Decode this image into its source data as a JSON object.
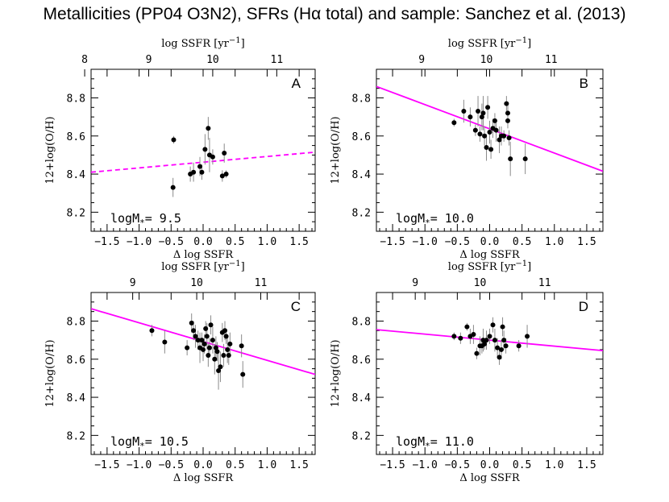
{
  "title": "Metallicities (PP04 O3N2), SFRs (Hα total) and sample: Sanchez et al. (2013)",
  "chart_data": [
    {
      "type": "scatter",
      "panel_letter": "A",
      "mass_label_prefix": "logM",
      "mass_label_sub": "*",
      "mass_value": "=  9.5",
      "xlabel": "Δ log SSFR",
      "ylabel": "12+log(O/H)",
      "top_xlabel": "log SSFR [yr",
      "top_xlabel_exp": "−1",
      "top_xlabel_end": "]",
      "xlim": [
        -1.75,
        1.75
      ],
      "ylim": [
        8.1,
        8.95
      ],
      "x_ticks": [
        -1.5,
        -1.0,
        -0.5,
        0.0,
        0.5,
        1.0,
        1.5
      ],
      "x_tick_labels": [
        "−1.5",
        "−1.0",
        "−0.5",
        "0.0",
        "0.5",
        "1.0",
        "1.5"
      ],
      "y_ticks": [
        8.2,
        8.4,
        8.6,
        8.8
      ],
      "y_tick_labels": [
        "8.2",
        "8.4",
        "8.6",
        "8.8"
      ],
      "top_ticks": [
        8,
        9,
        10,
        11
      ],
      "top_tick_labels": [
        "8",
        "9",
        "10",
        "11"
      ],
      "top_axis_offset": 9.85,
      "fit": {
        "x": [
          -1.75,
          1.75
        ],
        "y": [
          8.41,
          8.515
        ],
        "style": "dashed",
        "color": "#ff00ff"
      },
      "points": [
        {
          "x": -0.46,
          "y": 8.58,
          "yerr": 0.02
        },
        {
          "x": -0.47,
          "y": 8.33,
          "yerr": 0.05
        },
        {
          "x": -0.2,
          "y": 8.4,
          "yerr": 0.04
        },
        {
          "x": -0.15,
          "y": 8.41,
          "yerr": 0.05
        },
        {
          "x": -0.05,
          "y": 8.44,
          "yerr": 0.05
        },
        {
          "x": -0.02,
          "y": 8.41,
          "yerr": 0.04
        },
        {
          "x": 0.03,
          "y": 8.53,
          "yerr": 0.08
        },
        {
          "x": 0.08,
          "y": 8.64,
          "yerr": 0.06
        },
        {
          "x": 0.1,
          "y": 8.5,
          "yerr": 0.09
        },
        {
          "x": 0.15,
          "y": 8.49,
          "yerr": 0.04
        },
        {
          "x": 0.3,
          "y": 8.39,
          "yerr": 0.03
        },
        {
          "x": 0.33,
          "y": 8.51,
          "yerr": 0.05
        },
        {
          "x": 0.36,
          "y": 8.4,
          "yerr": 0.02
        }
      ]
    },
    {
      "type": "scatter",
      "panel_letter": "B",
      "mass_label_prefix": "logM",
      "mass_label_sub": "*",
      "mass_value": "=  10.0",
      "xlabel": "Δ log SSFR",
      "ylabel": "12+log(O/H)",
      "top_xlabel": "log SSFR [yr",
      "top_xlabel_exp": "−1",
      "top_xlabel_end": "]",
      "xlim": [
        -1.75,
        1.75
      ],
      "ylim": [
        8.1,
        8.95
      ],
      "x_ticks": [
        -1.5,
        -1.0,
        -0.5,
        0.0,
        0.5,
        1.0,
        1.5
      ],
      "x_tick_labels": [
        "−1.5",
        "−1.0",
        "−0.5",
        "0.0",
        "0.5",
        "1.0",
        "1.5"
      ],
      "y_ticks": [
        8.2,
        8.4,
        8.6,
        8.8
      ],
      "y_tick_labels": [
        "8.2",
        "8.4",
        "8.6",
        "8.8"
      ],
      "top_ticks": [
        9,
        10,
        11
      ],
      "top_tick_labels": [
        "9",
        "10",
        "11"
      ],
      "top_axis_offset": 10.05,
      "fit": {
        "x": [
          -1.75,
          1.75
        ],
        "y": [
          8.86,
          8.415
        ],
        "style": "solid",
        "color": "#ff00ff"
      },
      "points": [
        {
          "x": -0.55,
          "y": 8.67,
          "yerr": 0.02
        },
        {
          "x": -0.4,
          "y": 8.73,
          "yerr": 0.06
        },
        {
          "x": -0.3,
          "y": 8.7,
          "yerr": 0.05
        },
        {
          "x": -0.22,
          "y": 8.63,
          "yerr": 0.03
        },
        {
          "x": -0.18,
          "y": 8.73,
          "yerr": 0.08
        },
        {
          "x": -0.15,
          "y": 8.61,
          "yerr": 0.04
        },
        {
          "x": -0.12,
          "y": 8.7,
          "yerr": 0.07
        },
        {
          "x": -0.1,
          "y": 8.72,
          "yerr": 0.09
        },
        {
          "x": -0.08,
          "y": 8.6,
          "yerr": 0.05
        },
        {
          "x": -0.05,
          "y": 8.54,
          "yerr": 0.07
        },
        {
          "x": -0.03,
          "y": 8.75,
          "yerr": 0.06
        },
        {
          "x": 0.0,
          "y": 8.62,
          "yerr": 0.06
        },
        {
          "x": 0.02,
          "y": 8.53,
          "yerr": 0.05
        },
        {
          "x": 0.05,
          "y": 8.64,
          "yerr": 0.05
        },
        {
          "x": 0.08,
          "y": 8.68,
          "yerr": 0.04
        },
        {
          "x": 0.1,
          "y": 8.63,
          "yerr": 0.06
        },
        {
          "x": 0.15,
          "y": 8.58,
          "yerr": 0.07
        },
        {
          "x": 0.18,
          "y": 8.6,
          "yerr": 0.05
        },
        {
          "x": 0.22,
          "y": 8.6,
          "yerr": 0.03
        },
        {
          "x": 0.26,
          "y": 8.77,
          "yerr": 0.04
        },
        {
          "x": 0.28,
          "y": 8.72,
          "yerr": 0.06
        },
        {
          "x": 0.28,
          "y": 8.68,
          "yerr": 0.04
        },
        {
          "x": 0.3,
          "y": 8.59,
          "yerr": 0.04
        },
        {
          "x": 0.32,
          "y": 8.48,
          "yerr": 0.09
        },
        {
          "x": 0.55,
          "y": 8.48,
          "yerr": 0.08
        }
      ]
    },
    {
      "type": "scatter",
      "panel_letter": "C",
      "mass_label_prefix": "logM",
      "mass_label_sub": "*",
      "mass_value": "=  10.5",
      "xlabel": "Δ log SSFR",
      "ylabel": "12+log(O/H)",
      "top_xlabel": "log SSFR [yr",
      "top_xlabel_exp": "−1",
      "top_xlabel_end": "]",
      "xlim": [
        -1.75,
        1.75
      ],
      "ylim": [
        8.1,
        8.95
      ],
      "x_ticks": [
        -1.5,
        -1.0,
        -0.5,
        0.0,
        0.5,
        1.0,
        1.5
      ],
      "x_tick_labels": [
        "−1.5",
        "−1.0",
        "−0.5",
        "0.0",
        "0.5",
        "1.0",
        "1.5"
      ],
      "y_ticks": [
        8.2,
        8.4,
        8.6,
        8.8
      ],
      "y_tick_labels": [
        "8.2",
        "8.4",
        "8.6",
        "8.8"
      ],
      "top_ticks": [
        9,
        10,
        11
      ],
      "top_tick_labels": [
        "9",
        "10",
        "11"
      ],
      "top_axis_offset": 10.1,
      "fit": {
        "x": [
          -1.75,
          1.75
        ],
        "y": [
          8.865,
          8.52
        ],
        "style": "solid",
        "color": "#ff00ff"
      },
      "points": [
        {
          "x": -0.8,
          "y": 8.75,
          "yerr": 0.03
        },
        {
          "x": -0.6,
          "y": 8.69,
          "yerr": 0.06
        },
        {
          "x": -0.25,
          "y": 8.66,
          "yerr": 0.04
        },
        {
          "x": -0.18,
          "y": 8.79,
          "yerr": 0.05
        },
        {
          "x": -0.15,
          "y": 8.75,
          "yerr": 0.05
        },
        {
          "x": -0.12,
          "y": 8.72,
          "yerr": 0.06
        },
        {
          "x": -0.08,
          "y": 8.7,
          "yerr": 0.05
        },
        {
          "x": -0.05,
          "y": 8.66,
          "yerr": 0.08
        },
        {
          "x": -0.02,
          "y": 8.7,
          "yerr": 0.04
        },
        {
          "x": 0.0,
          "y": 8.65,
          "yerr": 0.06
        },
        {
          "x": 0.02,
          "y": 8.68,
          "yerr": 0.05
        },
        {
          "x": 0.04,
          "y": 8.76,
          "yerr": 0.04
        },
        {
          "x": 0.06,
          "y": 8.72,
          "yerr": 0.07
        },
        {
          "x": 0.08,
          "y": 8.62,
          "yerr": 0.06
        },
        {
          "x": 0.1,
          "y": 8.66,
          "yerr": 0.05
        },
        {
          "x": 0.12,
          "y": 8.78,
          "yerr": 0.05
        },
        {
          "x": 0.15,
          "y": 8.7,
          "yerr": 0.07
        },
        {
          "x": 0.18,
          "y": 8.6,
          "yerr": 0.08
        },
        {
          "x": 0.2,
          "y": 8.66,
          "yerr": 0.06
        },
        {
          "x": 0.22,
          "y": 8.64,
          "yerr": 0.05
        },
        {
          "x": 0.24,
          "y": 8.54,
          "yerr": 0.1
        },
        {
          "x": 0.27,
          "y": 8.56,
          "yerr": 0.08
        },
        {
          "x": 0.3,
          "y": 8.74,
          "yerr": 0.05
        },
        {
          "x": 0.32,
          "y": 8.62,
          "yerr": 0.06
        },
        {
          "x": 0.34,
          "y": 8.75,
          "yerr": 0.05
        },
        {
          "x": 0.36,
          "y": 8.72,
          "yerr": 0.04
        },
        {
          "x": 0.38,
          "y": 8.65,
          "yerr": 0.07
        },
        {
          "x": 0.4,
          "y": 8.62,
          "yerr": 0.05
        },
        {
          "x": 0.42,
          "y": 8.68,
          "yerr": 0.06
        },
        {
          "x": 0.6,
          "y": 8.67,
          "yerr": 0.06
        },
        {
          "x": 0.62,
          "y": 8.52,
          "yerr": 0.07
        }
      ]
    },
    {
      "type": "scatter",
      "panel_letter": "D",
      "mass_label_prefix": "logM",
      "mass_label_sub": "*",
      "mass_value": "=  11.0",
      "xlabel": "Δ log SSFR",
      "ylabel": "12+log(O/H)",
      "top_xlabel": "log SSFR [yr",
      "top_xlabel_exp": "−1",
      "top_xlabel_end": "]",
      "xlim": [
        -1.75,
        1.75
      ],
      "ylim": [
        8.1,
        8.95
      ],
      "x_ticks": [
        -1.5,
        -1.0,
        -0.5,
        0.0,
        0.5,
        1.0,
        1.5
      ],
      "x_tick_labels": [
        "−1.5",
        "−1.0",
        "−0.5",
        "0.0",
        "0.5",
        "1.0",
        "1.5"
      ],
      "y_ticks": [
        8.2,
        8.4,
        8.6,
        8.8
      ],
      "y_tick_labels": [
        "8.2",
        "8.4",
        "8.6",
        "8.8"
      ],
      "top_ticks": [
        9,
        10,
        11
      ],
      "top_tick_labels": [
        "9",
        "10",
        "11"
      ],
      "top_axis_offset": 10.15,
      "fit": {
        "x": [
          -1.75,
          1.75
        ],
        "y": [
          8.755,
          8.645
        ],
        "style": "solid",
        "color": "#ff00ff"
      },
      "points": [
        {
          "x": -0.55,
          "y": 8.72,
          "yerr": 0.02
        },
        {
          "x": -0.45,
          "y": 8.71,
          "yerr": 0.03
        },
        {
          "x": -0.35,
          "y": 8.77,
          "yerr": 0.02
        },
        {
          "x": -0.3,
          "y": 8.72,
          "yerr": 0.04
        },
        {
          "x": -0.25,
          "y": 8.73,
          "yerr": 0.05
        },
        {
          "x": -0.2,
          "y": 8.63,
          "yerr": 0.03
        },
        {
          "x": -0.15,
          "y": 8.67,
          "yerr": 0.05
        },
        {
          "x": -0.12,
          "y": 8.67,
          "yerr": 0.04
        },
        {
          "x": -0.1,
          "y": 8.7,
          "yerr": 0.06
        },
        {
          "x": -0.08,
          "y": 8.68,
          "yerr": 0.03
        },
        {
          "x": -0.05,
          "y": 8.7,
          "yerr": 0.05
        },
        {
          "x": 0.0,
          "y": 8.72,
          "yerr": 0.04
        },
        {
          "x": 0.05,
          "y": 8.78,
          "yerr": 0.04
        },
        {
          "x": 0.08,
          "y": 8.7,
          "yerr": 0.06
        },
        {
          "x": 0.12,
          "y": 8.66,
          "yerr": 0.05
        },
        {
          "x": 0.15,
          "y": 8.61,
          "yerr": 0.04
        },
        {
          "x": 0.18,
          "y": 8.65,
          "yerr": 0.05
        },
        {
          "x": 0.2,
          "y": 8.77,
          "yerr": 0.05
        },
        {
          "x": 0.22,
          "y": 8.7,
          "yerr": 0.05
        },
        {
          "x": 0.25,
          "y": 8.67,
          "yerr": 0.04
        },
        {
          "x": 0.45,
          "y": 8.67,
          "yerr": 0.03
        },
        {
          "x": 0.58,
          "y": 8.72,
          "yerr": 0.06
        }
      ]
    }
  ]
}
